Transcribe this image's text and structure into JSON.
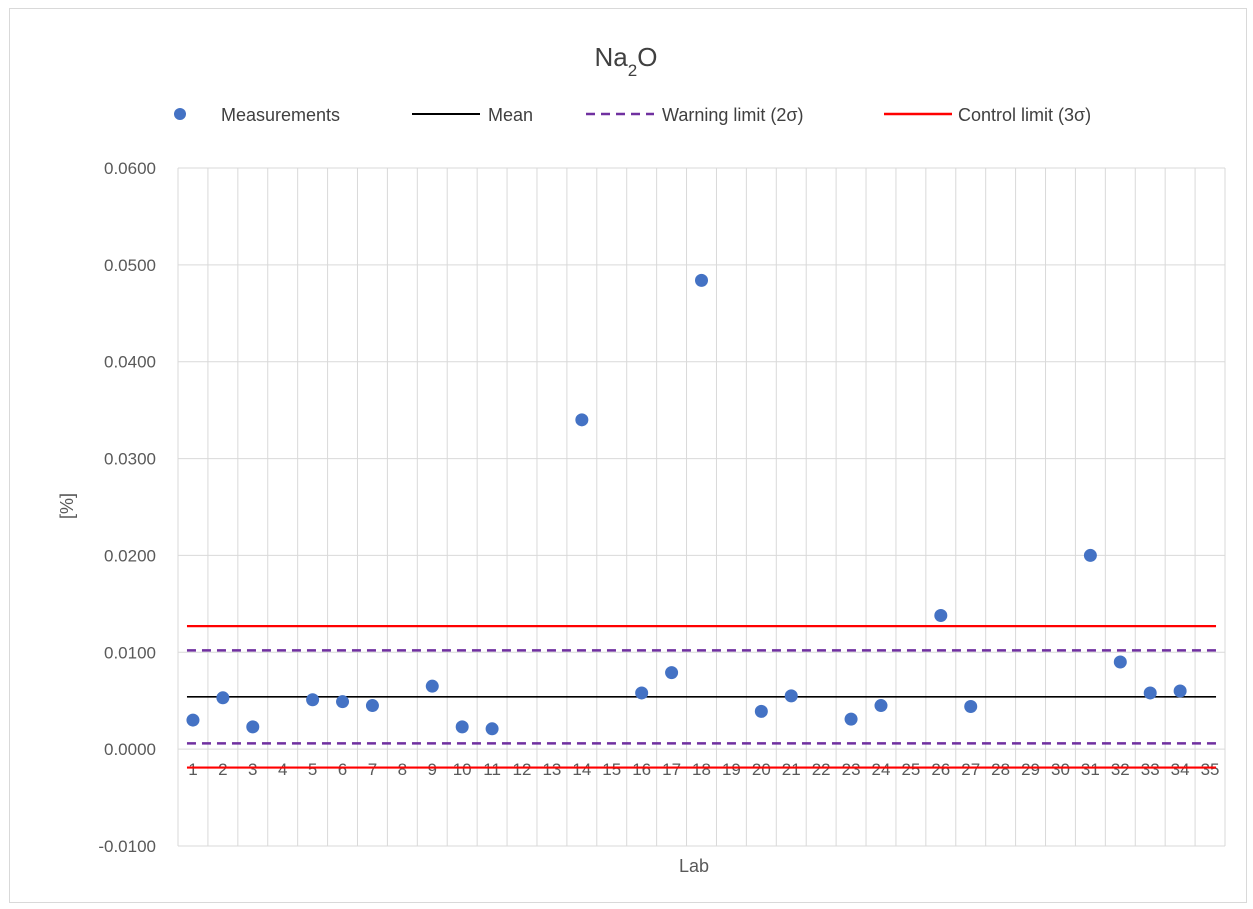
{
  "chart_data": {
    "type": "scatter",
    "title": "Na2O",
    "title_main": "Na",
    "title_sub": "2",
    "title_tail": "O",
    "xlabel": "Lab",
    "ylabel": "[%]",
    "ylim": [
      -0.01,
      0.06
    ],
    "yticks": [
      -0.01,
      0.0,
      0.01,
      0.02,
      0.03,
      0.04,
      0.05,
      0.06
    ],
    "ytick_labels": [
      "-0.0100",
      "0.0000",
      "0.0100",
      "0.0200",
      "0.0300",
      "0.0400",
      "0.0500",
      "0.0600"
    ],
    "xlim": [
      0.5,
      35.5
    ],
    "categories": [
      "1",
      "2",
      "3",
      "4",
      "5",
      "6",
      "7",
      "8",
      "9",
      "10",
      "11",
      "12",
      "13",
      "14",
      "15",
      "16",
      "17",
      "18",
      "19",
      "20",
      "21",
      "22",
      "23",
      "24",
      "25",
      "26",
      "27",
      "28",
      "29",
      "30",
      "31",
      "32",
      "33",
      "34",
      "35"
    ],
    "grid": true,
    "legend_position": "top",
    "series": [
      {
        "name": "Measurements",
        "kind": "points",
        "color": "#4472c4",
        "points": [
          {
            "x": 1,
            "y": 0.003
          },
          {
            "x": 2,
            "y": 0.0053
          },
          {
            "x": 3,
            "y": 0.0023
          },
          {
            "x": 5,
            "y": 0.0051
          },
          {
            "x": 6,
            "y": 0.0049
          },
          {
            "x": 7,
            "y": 0.0045
          },
          {
            "x": 9,
            "y": 0.0065
          },
          {
            "x": 10,
            "y": 0.0023
          },
          {
            "x": 11,
            "y": 0.0021
          },
          {
            "x": 14,
            "y": 0.034
          },
          {
            "x": 16,
            "y": 0.0058
          },
          {
            "x": 17,
            "y": 0.0079
          },
          {
            "x": 18,
            "y": 0.0484
          },
          {
            "x": 20,
            "y": 0.0039
          },
          {
            "x": 21,
            "y": 0.0055
          },
          {
            "x": 23,
            "y": 0.0031
          },
          {
            "x": 24,
            "y": 0.0045
          },
          {
            "x": 26,
            "y": 0.0138
          },
          {
            "x": 27,
            "y": 0.0044
          },
          {
            "x": 31,
            "y": 0.02
          },
          {
            "x": 32,
            "y": 0.009
          },
          {
            "x": 33,
            "y": 0.0058
          },
          {
            "x": 34,
            "y": 0.006
          }
        ]
      },
      {
        "name": "Mean",
        "kind": "hline",
        "color": "#000000",
        "dashed": false,
        "y": 0.0054
      },
      {
        "name": "Warning limit (2σ)",
        "kind": "hline",
        "color": "#7030a0",
        "dashed": true,
        "y_values": [
          0.0102,
          0.0006
        ]
      },
      {
        "name": "Control limit (3σ)",
        "kind": "hline",
        "color": "#ff0000",
        "dashed": false,
        "y_values": [
          0.0127,
          -0.0019
        ]
      }
    ]
  }
}
